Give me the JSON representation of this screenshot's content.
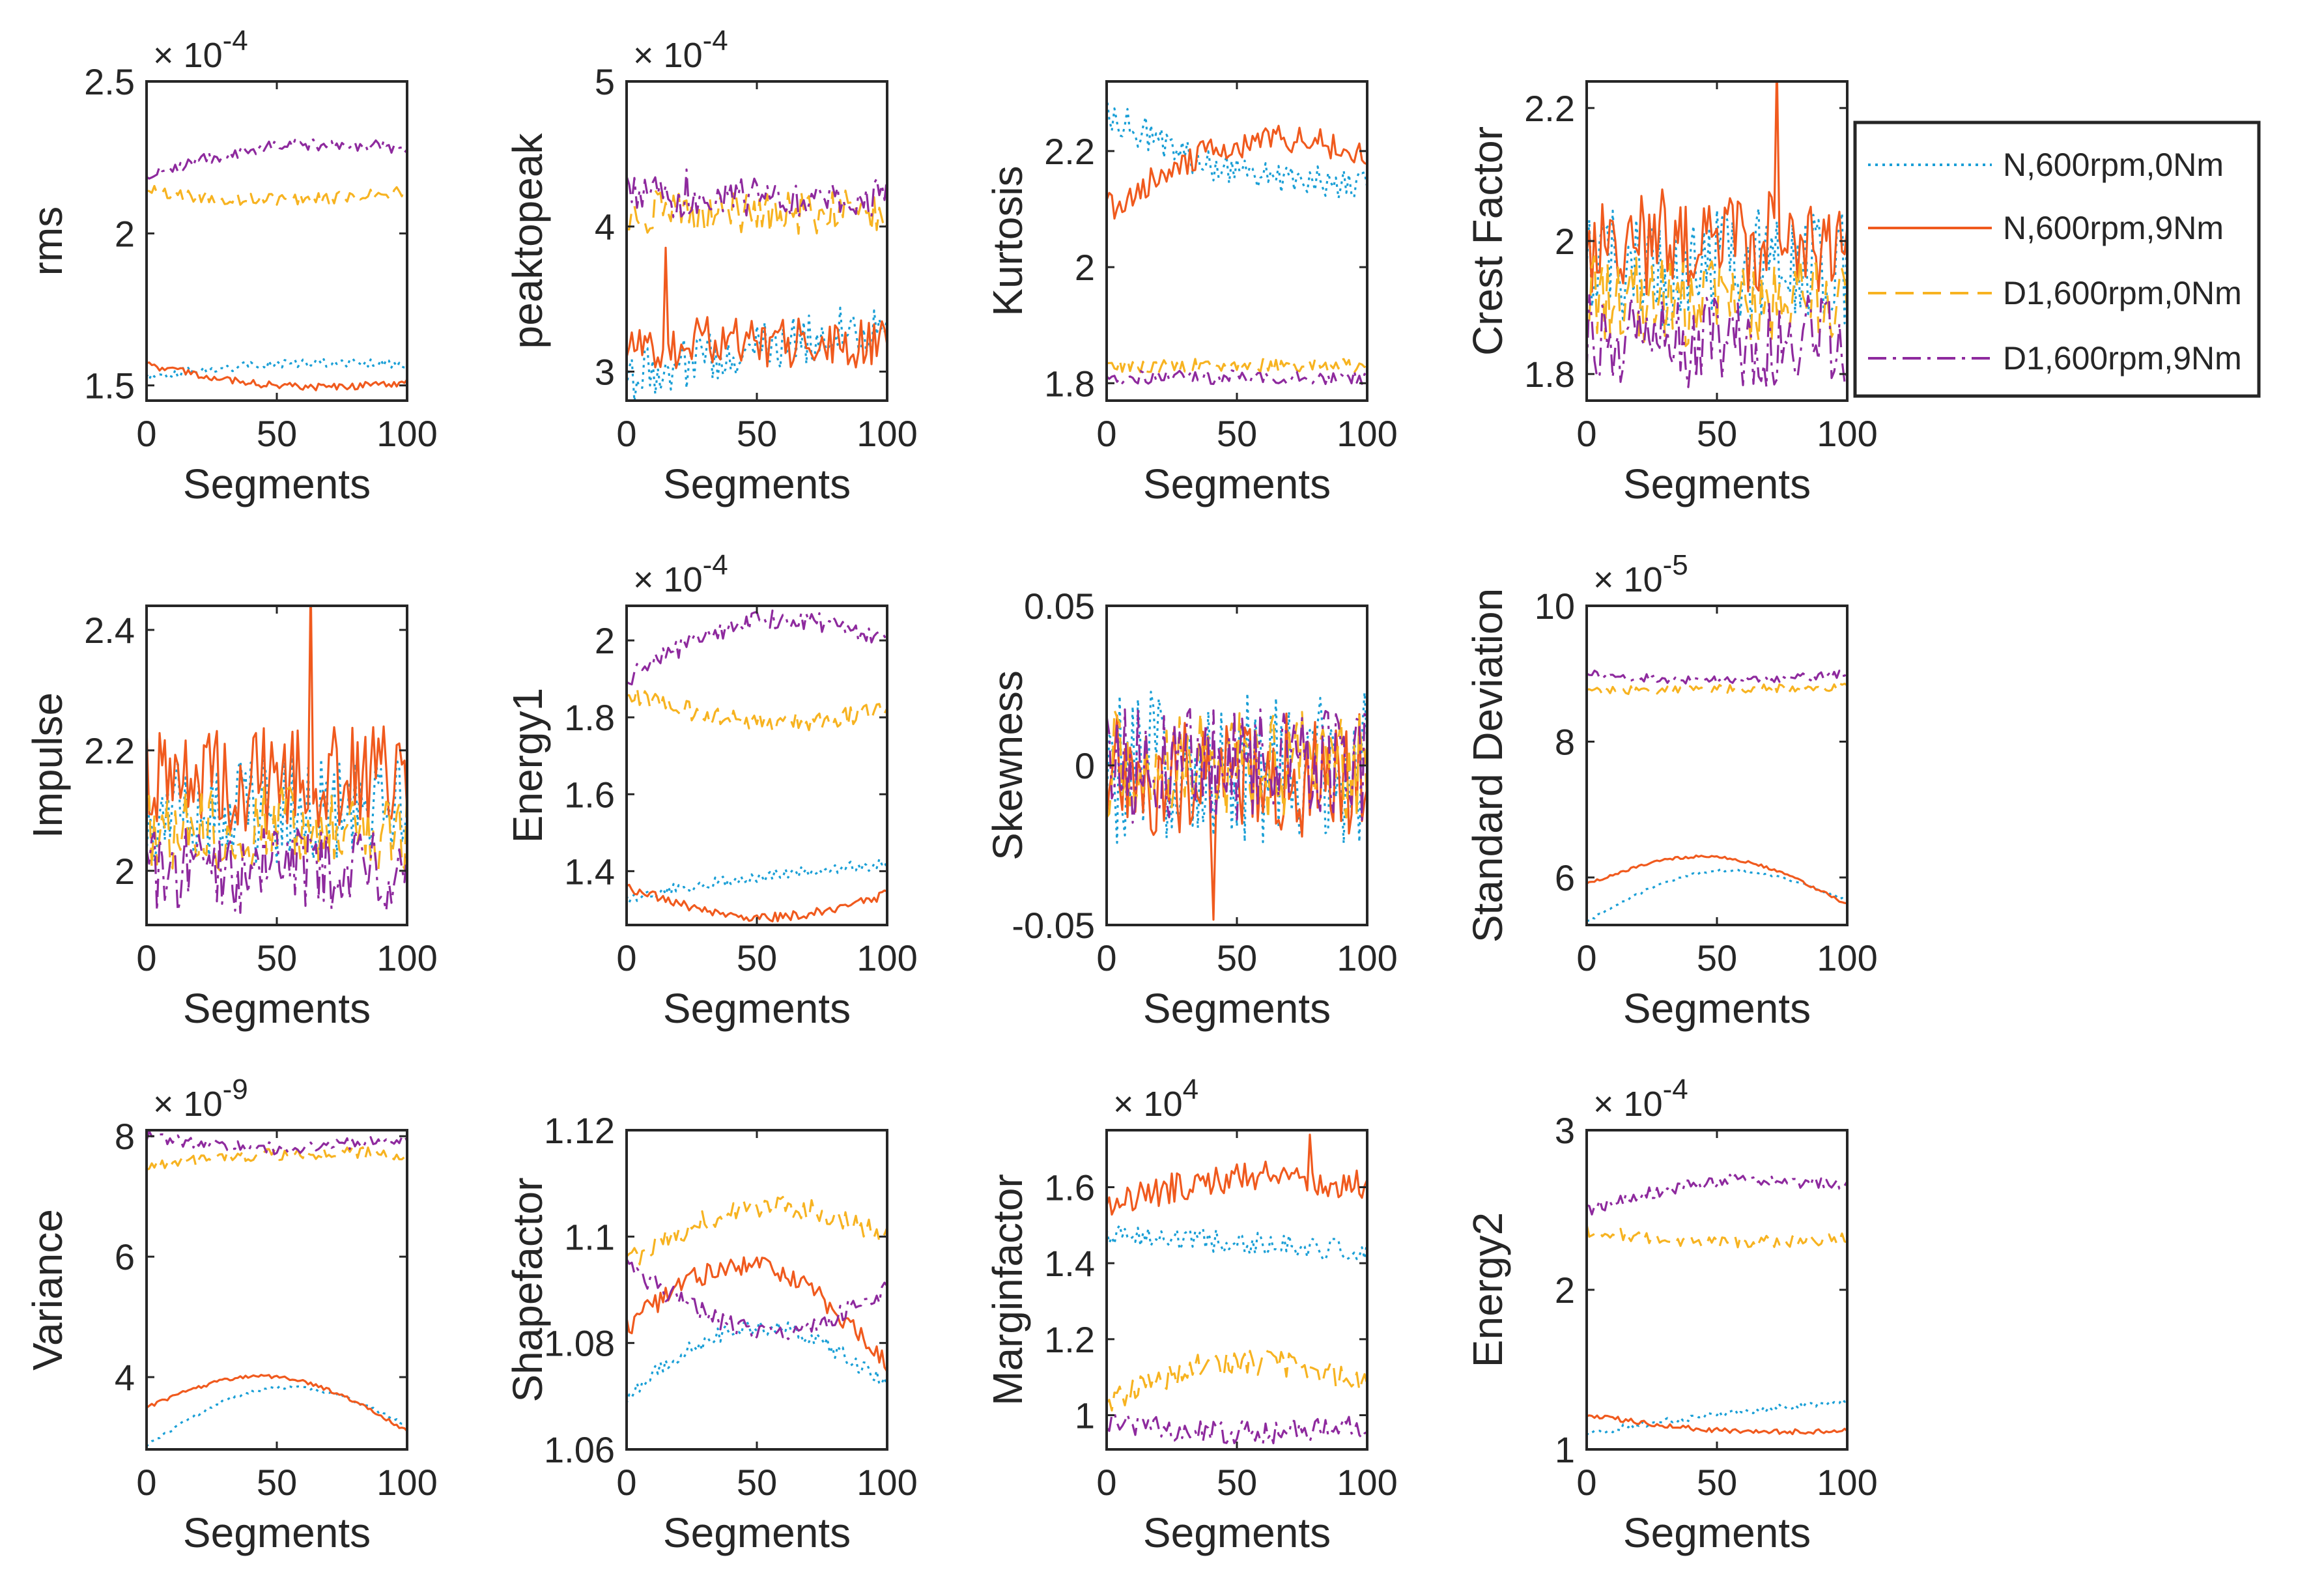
{
  "figure": {
    "xlabel": "Segments"
  },
  "legend": {
    "entries": [
      {
        "label": "N,600rpm,0Nm",
        "color": "#1a9fd6",
        "style": "dotted"
      },
      {
        "label": "N,600rpm,9Nm",
        "color": "#f05a1e",
        "style": "solid"
      },
      {
        "label": "D1,600rpm,0Nm",
        "color": "#f7b321",
        "style": "dashed"
      },
      {
        "label": "D1,600rpm,9Nm",
        "color": "#8e2a9e",
        "style": "dashdot"
      }
    ]
  },
  "chart_data": [
    {
      "type": "line",
      "ylabel": "rms",
      "exponent": "× 10^-4",
      "xlim": [
        0,
        100
      ],
      "ylim": [
        1.45,
        2.5
      ],
      "xticks": [
        "0",
        "50",
        "100"
      ],
      "yticks": [
        {
          "v": 1.5,
          "t": "1.5"
        },
        {
          "v": 2,
          "t": "2"
        },
        {
          "v": 2.5,
          "t": "2.5"
        }
      ],
      "series": [
        {
          "name": "N,600rpm,0Nm",
          "start": 1.53,
          "end": 1.57,
          "noise": 0.015,
          "wave": 0.02,
          "spike": 0
        },
        {
          "name": "N,600rpm,9Nm",
          "start": 1.57,
          "end": 1.51,
          "noise": 0.012,
          "wave": -0.04,
          "spike": 0
        },
        {
          "name": "D1,600rpm,0Nm",
          "start": 2.14,
          "end": 2.14,
          "noise": 0.02,
          "wave": -0.03,
          "spike": 0
        },
        {
          "name": "D1,600rpm,9Nm",
          "start": 2.19,
          "end": 2.28,
          "noise": 0.02,
          "wave": 0.05,
          "spike": 0
        }
      ]
    },
    {
      "type": "line",
      "ylabel": "peaktopeak",
      "exponent": "× 10^-4",
      "xlim": [
        0,
        100
      ],
      "ylim": [
        2.8,
        5
      ],
      "xticks": [
        "0",
        "50",
        "100"
      ],
      "yticks": [
        {
          "v": 3,
          "t": "3"
        },
        {
          "v": 4,
          "t": "4"
        },
        {
          "v": 5,
          "t": "5"
        }
      ],
      "series": [
        {
          "name": "N,600rpm,0Nm",
          "start": 2.95,
          "end": 3.3,
          "noise": 0.18,
          "wave": 0.05,
          "spike": 0
        },
        {
          "name": "N,600rpm,9Nm",
          "start": 3.2,
          "end": 3.2,
          "noise": 0.18,
          "wave": 0,
          "spike": 0.6
        },
        {
          "name": "D1,600rpm,0Nm",
          "start": 4.1,
          "end": 4.1,
          "noise": 0.15,
          "wave": 0,
          "spike": 0
        },
        {
          "name": "D1,600rpm,9Nm",
          "start": 4.2,
          "end": 4.2,
          "noise": 0.15,
          "wave": 0,
          "spike": 0.3
        }
      ]
    },
    {
      "type": "line",
      "ylabel": "Kurtosis",
      "exponent": "",
      "xlim": [
        0,
        100
      ],
      "ylim": [
        1.77,
        2.32
      ],
      "xticks": [
        "0",
        "50",
        "100"
      ],
      "yticks": [
        {
          "v": 1.8,
          "t": "1.8"
        },
        {
          "v": 2,
          "t": "2"
        },
        {
          "v": 2.2,
          "t": "2.2"
        }
      ],
      "series": [
        {
          "name": "N,600rpm,0Nm",
          "start": 2.27,
          "end": 2.15,
          "noise": 0.03,
          "wave": -0.05,
          "spike": 0
        },
        {
          "name": "N,600rpm,9Nm",
          "start": 2.1,
          "end": 2.2,
          "noise": 0.025,
          "wave": 0.06,
          "spike": 0
        },
        {
          "name": "D1,600rpm,0Nm",
          "start": 1.83,
          "end": 1.83,
          "noise": 0.012,
          "wave": 0,
          "spike": 0
        },
        {
          "name": "D1,600rpm,9Nm",
          "start": 1.81,
          "end": 1.81,
          "noise": 0.012,
          "wave": 0,
          "spike": 0
        }
      ]
    },
    {
      "type": "line",
      "ylabel": "Crest Factor",
      "exponent": "",
      "xlim": [
        0,
        100
      ],
      "ylim": [
        1.76,
        2.24
      ],
      "xticks": [
        "0",
        "50",
        "100"
      ],
      "yticks": [
        {
          "v": 1.8,
          "t": "1.8"
        },
        {
          "v": 2,
          "t": "2"
        },
        {
          "v": 2.2,
          "t": "2.2"
        }
      ],
      "series": [
        {
          "name": "N,600rpm,0Nm",
          "start": 1.96,
          "end": 1.96,
          "noise": 0.09,
          "wave": 0,
          "spike": 0
        },
        {
          "name": "N,600rpm,9Nm",
          "start": 2.0,
          "end": 2.0,
          "noise": 0.08,
          "wave": 0,
          "spike": 0.25
        },
        {
          "name": "D1,600rpm,0Nm",
          "start": 1.91,
          "end": 1.91,
          "noise": 0.07,
          "wave": 0,
          "spike": 0
        },
        {
          "name": "D1,600rpm,9Nm",
          "start": 1.85,
          "end": 1.85,
          "noise": 0.07,
          "wave": 0,
          "spike": 0
        }
      ]
    },
    {
      "type": "line",
      "ylabel": "Impulse",
      "exponent": "",
      "xlim": [
        0,
        100
      ],
      "ylim": [
        1.91,
        2.44
      ],
      "xticks": [
        "0",
        "50",
        "100"
      ],
      "yticks": [
        {
          "v": 2,
          "t": "2"
        },
        {
          "v": 2.2,
          "t": "2.2"
        },
        {
          "v": 2.4,
          "t": "2.4"
        }
      ],
      "series": [
        {
          "name": "N,600rpm,0Nm",
          "start": 2.1,
          "end": 2.1,
          "noise": 0.09,
          "wave": 0,
          "spike": 0
        },
        {
          "name": "N,600rpm,9Nm",
          "start": 2.15,
          "end": 2.15,
          "noise": 0.09,
          "wave": 0,
          "spike": 0.28
        },
        {
          "name": "D1,600rpm,0Nm",
          "start": 2.07,
          "end": 2.07,
          "noise": 0.07,
          "wave": 0,
          "spike": 0
        },
        {
          "name": "D1,600rpm,9Nm",
          "start": 2.0,
          "end": 2.0,
          "noise": 0.07,
          "wave": 0,
          "spike": 0
        }
      ]
    },
    {
      "type": "line",
      "ylabel": "Energy1",
      "exponent": "× 10^-4",
      "xlim": [
        0,
        100
      ],
      "ylim": [
        1.26,
        2.09
      ],
      "xticks": [
        "0",
        "50",
        "100"
      ],
      "yticks": [
        {
          "v": 1.4,
          "t": "1.4"
        },
        {
          "v": 1.6,
          "t": "1.6"
        },
        {
          "v": 1.8,
          "t": "1.8"
        },
        {
          "v": 2,
          "t": "2"
        }
      ],
      "series": [
        {
          "name": "N,600rpm,0Nm",
          "start": 1.33,
          "end": 1.42,
          "noise": 0.015,
          "wave": 0.01,
          "spike": 0
        },
        {
          "name": "N,600rpm,9Nm",
          "start": 1.36,
          "end": 1.34,
          "noise": 0.012,
          "wave": -0.07,
          "spike": 0
        },
        {
          "name": "D1,600rpm,0Nm",
          "start": 1.86,
          "end": 1.82,
          "noise": 0.025,
          "wave": -0.05,
          "spike": 0
        },
        {
          "name": "D1,600rpm,9Nm",
          "start": 1.9,
          "end": 2.0,
          "noise": 0.025,
          "wave": 0.1,
          "spike": 0
        }
      ]
    },
    {
      "type": "line",
      "ylabel": "Skewness",
      "exponent": "",
      "xlim": [
        0,
        100
      ],
      "ylim": [
        -0.05,
        0.05
      ],
      "xticks": [
        "0",
        "50",
        "100"
      ],
      "yticks": [
        {
          "v": -0.05,
          "t": "-0.05"
        },
        {
          "v": 0,
          "t": "0"
        },
        {
          "v": 0.05,
          "t": "0.05"
        }
      ],
      "series": [
        {
          "name": "N,600rpm,0Nm",
          "start": 0.0,
          "end": 0.0,
          "noise": 0.025,
          "wave": 0,
          "spike": 0
        },
        {
          "name": "N,600rpm,9Nm",
          "start": -0.003,
          "end": -0.003,
          "noise": 0.02,
          "wave": 0,
          "spike": -0.04
        },
        {
          "name": "D1,600rpm,0Nm",
          "start": 0.0,
          "end": 0.0,
          "noise": 0.018,
          "wave": 0,
          "spike": 0
        },
        {
          "name": "D1,600rpm,9Nm",
          "start": 0.0,
          "end": 0.0,
          "noise": 0.018,
          "wave": 0,
          "spike": 0
        }
      ]
    },
    {
      "type": "line",
      "ylabel": "Standard Deviation",
      "exponent": "× 10^-5",
      "xlim": [
        0,
        100
      ],
      "ylim": [
        5.3,
        10
      ],
      "xticks": [
        "0",
        "50",
        "100"
      ],
      "yticks": [
        {
          "v": 6,
          "t": "6"
        },
        {
          "v": 8,
          "t": "8"
        },
        {
          "v": 10,
          "t": "10"
        }
      ],
      "series": [
        {
          "name": "N,600rpm,0Nm",
          "start": 5.35,
          "end": 5.65,
          "noise": 0.02,
          "wave": 0.6,
          "spike": 0
        },
        {
          "name": "N,600rpm,9Nm",
          "start": 5.9,
          "end": 5.6,
          "noise": 0.02,
          "wave": 0.55,
          "spike": 0
        },
        {
          "name": "D1,600rpm,0Nm",
          "start": 8.75,
          "end": 8.8,
          "noise": 0.06,
          "wave": 0,
          "spike": 0
        },
        {
          "name": "D1,600rpm,9Nm",
          "start": 9.0,
          "end": 9.0,
          "noise": 0.06,
          "wave": -0.1,
          "spike": 0
        }
      ]
    },
    {
      "type": "line",
      "ylabel": "Variance",
      "exponent": "× 10^-9",
      "xlim": [
        0,
        100
      ],
      "ylim": [
        2.8,
        8.1
      ],
      "xticks": [
        "0",
        "50",
        "100"
      ],
      "yticks": [
        {
          "v": 4,
          "t": "4"
        },
        {
          "v": 6,
          "t": "6"
        },
        {
          "v": 8,
          "t": "8"
        }
      ],
      "series": [
        {
          "name": "N,600rpm,0Nm",
          "start": 2.85,
          "end": 3.2,
          "noise": 0.03,
          "wave": 0.8,
          "spike": 0
        },
        {
          "name": "N,600rpm,9Nm",
          "start": 3.5,
          "end": 3.1,
          "noise": 0.03,
          "wave": 0.7,
          "spike": 0
        },
        {
          "name": "D1,600rpm,0Nm",
          "start": 7.5,
          "end": 7.7,
          "noise": 0.1,
          "wave": 0.1,
          "spike": 0
        },
        {
          "name": "D1,600rpm,9Nm",
          "start": 8.0,
          "end": 8.0,
          "noise": 0.1,
          "wave": -0.2,
          "spike": 0
        }
      ]
    },
    {
      "type": "line",
      "ylabel": "Shapefactor",
      "exponent": "",
      "xlim": [
        0,
        100
      ],
      "ylim": [
        1.06,
        1.12
      ],
      "xticks": [
        "0",
        "50",
        "100"
      ],
      "yticks": [
        {
          "v": 1.06,
          "t": "1.06"
        },
        {
          "v": 1.08,
          "t": "1.08"
        },
        {
          "v": 1.1,
          "t": "1.1"
        },
        {
          "v": 1.12,
          "t": "1.12"
        }
      ],
      "series": [
        {
          "name": "N,600rpm,0Nm",
          "start": 1.07,
          "end": 1.072,
          "noise": 0.0015,
          "wave": 0.012,
          "spike": 0
        },
        {
          "name": "N,600rpm,9Nm",
          "start": 1.083,
          "end": 1.076,
          "noise": 0.002,
          "wave": 0.015,
          "spike": 0
        },
        {
          "name": "D1,600rpm,0Nm",
          "start": 1.095,
          "end": 1.1,
          "noise": 0.002,
          "wave": 0.008,
          "spike": 0
        },
        {
          "name": "D1,600rpm,9Nm",
          "start": 1.095,
          "end": 1.09,
          "noise": 0.002,
          "wave": -0.01,
          "spike": 0
        }
      ]
    },
    {
      "type": "line",
      "ylabel": "Marginfactor",
      "exponent": "× 10^4",
      "xlim": [
        0,
        100
      ],
      "ylim": [
        0.91,
        1.75
      ],
      "xticks": [
        "0",
        "50",
        "100"
      ],
      "yticks": [
        {
          "v": 1,
          "t": "1"
        },
        {
          "v": 1.2,
          "t": "1.2"
        },
        {
          "v": 1.4,
          "t": "1.4"
        },
        {
          "v": 1.6,
          "t": "1.6"
        }
      ],
      "series": [
        {
          "name": "N,600rpm,0Nm",
          "start": 1.48,
          "end": 1.43,
          "noise": 0.03,
          "wave": 0,
          "spike": 0
        },
        {
          "name": "N,600rpm,9Nm",
          "start": 1.55,
          "end": 1.6,
          "noise": 0.04,
          "wave": 0.05,
          "spike": 0.15
        },
        {
          "name": "D1,600rpm,0Nm",
          "start": 1.04,
          "end": 1.08,
          "noise": 0.035,
          "wave": 0.08,
          "spike": 0
        },
        {
          "name": "D1,600rpm,9Nm",
          "start": 0.98,
          "end": 0.97,
          "noise": 0.03,
          "wave": -0.02,
          "spike": 0
        }
      ]
    },
    {
      "type": "line",
      "ylabel": "Energy2",
      "exponent": "× 10^-4",
      "xlim": [
        0,
        100
      ],
      "ylim": [
        1,
        3
      ],
      "xticks": [
        "0",
        "50",
        "100"
      ],
      "yticks": [
        {
          "v": 1,
          "t": "1"
        },
        {
          "v": 2,
          "t": "2"
        },
        {
          "v": 3,
          "t": "3"
        }
      ],
      "series": [
        {
          "name": "N,600rpm,0Nm",
          "start": 1.1,
          "end": 1.3,
          "noise": 0.02,
          "wave": 0.02,
          "spike": 0
        },
        {
          "name": "N,600rpm,9Nm",
          "start": 1.22,
          "end": 1.12,
          "noise": 0.015,
          "wave": -0.05,
          "spike": 0
        },
        {
          "name": "D1,600rpm,0Nm",
          "start": 2.37,
          "end": 2.33,
          "noise": 0.04,
          "wave": -0.05,
          "spike": 0
        },
        {
          "name": "D1,600rpm,9Nm",
          "start": 2.5,
          "end": 2.65,
          "noise": 0.04,
          "wave": 0.1,
          "spike": 0
        }
      ]
    }
  ]
}
